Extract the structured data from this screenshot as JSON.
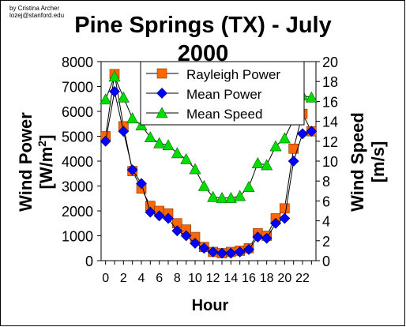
{
  "credit": {
    "author": "by Cristina Archer",
    "email": "lozej@stanford.edu"
  },
  "chart_data": {
    "type": "line",
    "title_line1": "Pine Springs (TX) - July",
    "title_line2": "2000",
    "xlabel": "Hour",
    "ylabel_left": "Wind Power [W/m²]",
    "ylabel_left_main": "Wind Power",
    "ylabel_left_unit_pre": "[W/m",
    "ylabel_left_unit_sup": "2",
    "ylabel_left_unit_post": "]",
    "ylabel_right": "Wind Speed [m/s]",
    "ylabel_right_main": "Wind Speed",
    "ylabel_right_unit": "[m/s]",
    "x": [
      0,
      1,
      2,
      3,
      4,
      5,
      6,
      7,
      8,
      9,
      10,
      11,
      12,
      13,
      14,
      15,
      16,
      17,
      18,
      19,
      20,
      21,
      22,
      23
    ],
    "xlim": [
      -0.5,
      23.5
    ],
    "xticks": [
      0,
      2,
      4,
      6,
      8,
      10,
      12,
      14,
      16,
      18,
      20,
      22
    ],
    "ylim_left": [
      0,
      8000
    ],
    "yticks_left": [
      0,
      1000,
      2000,
      3000,
      4000,
      5000,
      6000,
      7000,
      8000
    ],
    "ylim_right": [
      0,
      20
    ],
    "yticks_right": [
      0,
      2,
      4,
      6,
      8,
      10,
      12,
      14,
      16,
      18,
      20
    ],
    "grid": false,
    "legend_position": "top-right",
    "series": [
      {
        "name": "Rayleigh Power",
        "axis": "left",
        "marker": "square",
        "color": "#FF6600",
        "values": [
          5000,
          7500,
          5400,
          3600,
          2900,
          2200,
          2000,
          1900,
          1500,
          1250,
          950,
          550,
          350,
          300,
          350,
          400,
          500,
          1100,
          1000,
          1700,
          2100,
          4500,
          5900,
          5200
        ]
      },
      {
        "name": "Mean Power",
        "axis": "left",
        "marker": "diamond",
        "color": "#0000FF",
        "values": [
          4800,
          6800,
          5200,
          3650,
          3100,
          1950,
          1800,
          1700,
          1200,
          1000,
          700,
          500,
          350,
          300,
          300,
          350,
          450,
          950,
          900,
          1500,
          1700,
          4000,
          5100,
          5200
        ]
      },
      {
        "name": "Mean Speed",
        "axis": "right",
        "marker": "triangle",
        "color": "#00DD00",
        "values": [
          16.2,
          18.5,
          16.4,
          14.3,
          13.6,
          12.4,
          11.8,
          11.6,
          10.8,
          10.2,
          9.2,
          7.5,
          6.4,
          6.3,
          6.3,
          6.5,
          7.4,
          9.8,
          9.6,
          11.5,
          12.3,
          14.2,
          16.6,
          16.4
        ]
      }
    ]
  }
}
